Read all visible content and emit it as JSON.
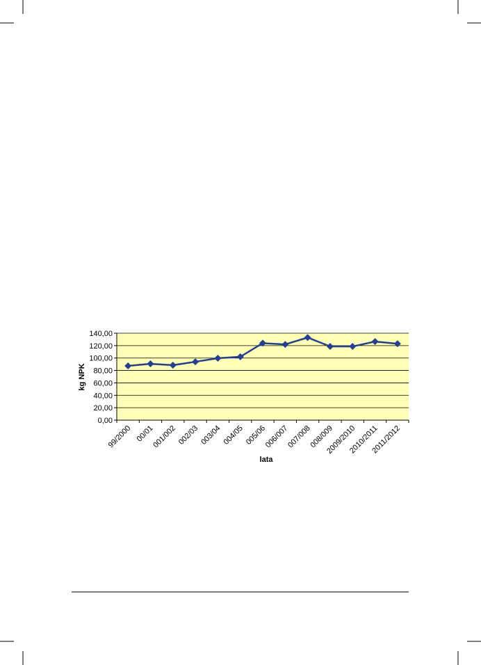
{
  "chart_data": {
    "type": "line",
    "x_label": "lata",
    "y_label": "kg NPK",
    "categories": [
      "99/2000",
      "00/01",
      "001/002",
      "002/03",
      "003/04",
      "004/05",
      "005/06",
      "006/007",
      "007/008",
      "008/009",
      "2009/2010",
      "2010/2011",
      "2011/2012"
    ],
    "series": [
      {
        "name": "kg NPK",
        "color": "#23408e",
        "values": [
          87.3,
          90.7,
          88.5,
          94,
          99.7,
          102,
          124,
          122,
          133,
          118.7,
          118.7,
          126.5,
          123
        ]
      }
    ],
    "ylim": [
      0,
      140
    ],
    "yticks": [
      {
        "value": 0,
        "label": "0,00"
      },
      {
        "value": 20,
        "label": "20,00"
      },
      {
        "value": 40,
        "label": "40,00"
      },
      {
        "value": 60,
        "label": "60,00"
      },
      {
        "value": 80,
        "label": "80,00"
      },
      {
        "value": 100,
        "label": "100,00"
      },
      {
        "value": 120,
        "label": "120,00"
      },
      {
        "value": 140,
        "label": "140,00"
      }
    ],
    "grid": true,
    "background": "#ffffb8"
  }
}
